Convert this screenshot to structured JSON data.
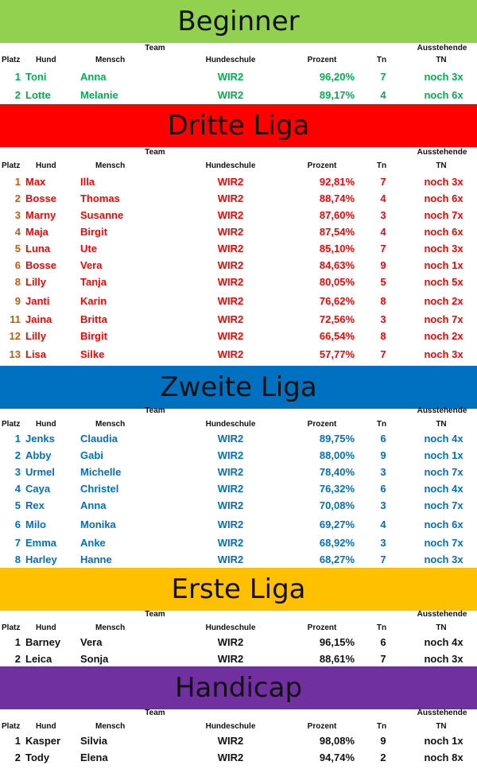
{
  "columns": {
    "team_group": "Team",
    "pending_group": "Ausstehende",
    "rank": "Platz",
    "dog": "Hund",
    "human": "Mensch",
    "school": "Hundeschule",
    "percent": "Prozent",
    "tn": "Tn",
    "pending_tn": "TN"
  },
  "leagues": [
    {
      "title": "Beginner",
      "banner_color": "#92d050",
      "text_color": "#00b050",
      "rows": [
        {
          "rank": "1",
          "dog": "Toni",
          "human": "Anna",
          "school": "WIR2",
          "percent": "96,20%",
          "tn": "7",
          "pending": "noch 3x"
        },
        {
          "rank": "2",
          "dog": "Lotte",
          "human": "Melanie",
          "school": "WIR2",
          "percent": "89,17%",
          "tn": "4",
          "pending": "noch 6x"
        }
      ]
    },
    {
      "title": "Dritte Liga",
      "banner_color": "#ff0000",
      "text_color": "#ff0000",
      "rank_color": "#c55a11",
      "rows": [
        {
          "rank": "1",
          "dog": "Max",
          "human": "Illa",
          "school": "WIR2",
          "percent": "92,81%",
          "tn": "7",
          "pending": "noch 3x"
        },
        {
          "rank": "2",
          "dog": "Bosse",
          "human": "Thomas",
          "school": "WIR2",
          "percent": "88,74%",
          "tn": "4",
          "pending": "noch 6x"
        },
        {
          "rank": "3",
          "dog": "Marny",
          "human": "Susanne",
          "school": "WIR2",
          "percent": "87,60%",
          "tn": "3",
          "pending": "noch 7x"
        },
        {
          "rank": "4",
          "dog": "Maja",
          "human": "Birgit",
          "school": "WIR2",
          "percent": "87,54%",
          "tn": "4",
          "pending": "noch 6x"
        },
        {
          "rank": "5",
          "dog": "Luna",
          "human": "Ute",
          "school": "WIR2",
          "percent": "85,10%",
          "tn": "7",
          "pending": "noch 3x"
        },
        {
          "rank": "6",
          "dog": "Bosse",
          "human": "Vera",
          "school": "WIR2",
          "percent": "84,63%",
          "tn": "9",
          "pending": "noch 1x"
        },
        {
          "rank": "8",
          "dog": "Lilly",
          "human": "Tanja",
          "school": "WIR2",
          "percent": "80,05%",
          "tn": "5",
          "pending": "noch 5x"
        },
        {
          "rank": "9",
          "dog": "Janti",
          "human": "Karin",
          "school": "WIR2",
          "percent": "76,62%",
          "tn": "8",
          "pending": "noch 2x"
        },
        {
          "rank": "11",
          "dog": "Jaina",
          "human": "Britta",
          "school": "WIR2",
          "percent": "72,56%",
          "tn": "3",
          "pending": "noch 7x"
        },
        {
          "rank": "12",
          "dog": "Lilly",
          "human": "Birgit",
          "school": "WIR2",
          "percent": "66,54%",
          "tn": "8",
          "pending": "noch 2x"
        },
        {
          "rank": "13",
          "dog": "Lisa",
          "human": "Silke",
          "school": "WIR2",
          "percent": "57,77%",
          "tn": "7",
          "pending": "noch 3x"
        }
      ]
    },
    {
      "title": "Zweite Liga",
      "banner_color": "#0070c0",
      "text_color": "#0070c0",
      "rows": [
        {
          "rank": "1",
          "dog": "Jenks",
          "human": "Claudia",
          "school": "WIR2",
          "percent": "89,75%",
          "tn": "6",
          "pending": "noch 4x"
        },
        {
          "rank": "2",
          "dog": "Abby",
          "human": "Gabi",
          "school": "WIR2",
          "percent": "88,00%",
          "tn": "9",
          "pending": "noch 1x"
        },
        {
          "rank": "3",
          "dog": "Urmel",
          "human": "Michelle",
          "school": "WIR2",
          "percent": "78,40%",
          "tn": "3",
          "pending": "noch 7x"
        },
        {
          "rank": "4",
          "dog": "Caya",
          "human": "Christel",
          "school": "WIR2",
          "percent": "76,32%",
          "tn": "6",
          "pending": "noch 4x"
        },
        {
          "rank": "5",
          "dog": "Rex",
          "human": "Anna",
          "school": "WIR2",
          "percent": "70,08%",
          "tn": "3",
          "pending": "noch 7x"
        },
        {
          "rank": "6",
          "dog": "Milo",
          "human": "Monika",
          "school": "WIR2",
          "percent": "69,27%",
          "tn": "4",
          "pending": "noch 6x"
        },
        {
          "rank": "7",
          "dog": "Emma",
          "human": "Anke",
          "school": "WIR2",
          "percent": "68,92%",
          "tn": "3",
          "pending": "noch 7x"
        },
        {
          "rank": "8",
          "dog": "Harley",
          "human": "Hanne",
          "school": "WIR2",
          "percent": "68,27%",
          "tn": "7",
          "pending": "noch 3x"
        }
      ]
    },
    {
      "title": "Erste Liga",
      "banner_color": "#ffc000",
      "text_color": "#111111",
      "rows": [
        {
          "rank": "1",
          "dog": "Barney",
          "human": "Vera",
          "school": "WIR2",
          "percent": "96,15%",
          "tn": "6",
          "pending": "noch 4x"
        },
        {
          "rank": "2",
          "dog": "Leica",
          "human": "Sonja",
          "school": "WIR2",
          "percent": "88,61%",
          "tn": "7",
          "pending": "noch 3x"
        }
      ]
    },
    {
      "title": "Handicap",
      "banner_color": "#7030a0",
      "text_color": "#111111",
      "rows": [
        {
          "rank": "1",
          "dog": "Kasper",
          "human": "Silvia",
          "school": "WIR2",
          "percent": "98,08%",
          "tn": "9",
          "pending": "noch 1x"
        },
        {
          "rank": "2",
          "dog": "Tody",
          "human": "Elena",
          "school": "WIR2",
          "percent": "94,74%",
          "tn": "2",
          "pending": "noch 8x"
        }
      ]
    }
  ]
}
